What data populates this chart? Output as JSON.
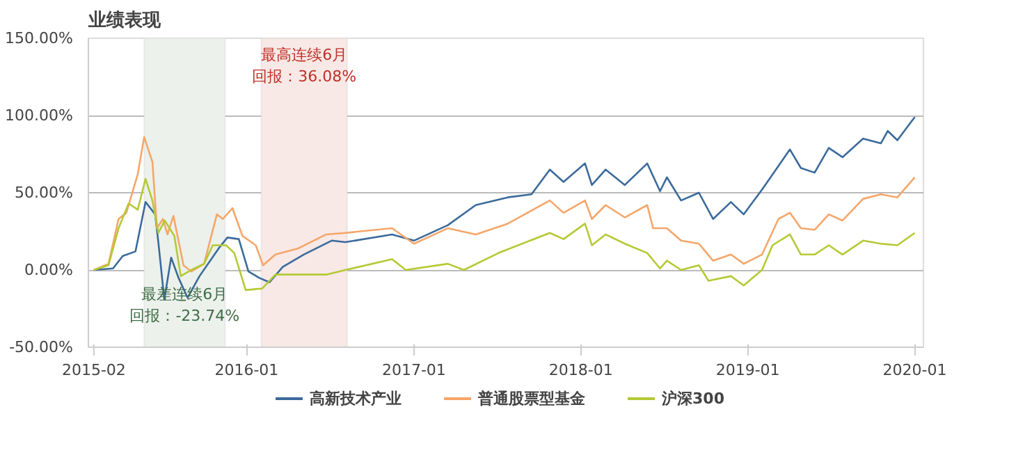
{
  "chart_data": {
    "type": "line",
    "title": "业绩表现",
    "xlim": [
      "2015-01-20",
      "2020-01-20"
    ],
    "ylim": [
      -50,
      150
    ],
    "xticks": [
      "2015-02",
      "2016-01",
      "2017-01",
      "2018-01",
      "2019-01",
      "2020-01"
    ],
    "yticks": [
      {
        "value": -50,
        "label": "-50.00%"
      },
      {
        "value": 0,
        "label": "0.00%"
      },
      {
        "value": 50,
        "label": "50.00%"
      },
      {
        "value": 100,
        "label": "100.00%"
      },
      {
        "value": 150,
        "label": "150.00%"
      }
    ],
    "grid": "y",
    "legend": "bottom",
    "bands": [
      {
        "axis": "x",
        "from": "2015-05-22",
        "to": "2015-11-15",
        "label": "最差连续6月",
        "color": "#ecf1ec"
      },
      {
        "axis": "x",
        "from": "2016-02-02",
        "to": "2016-08-08",
        "label": "最高连续6月",
        "color": "#f8e9e6"
      }
    ],
    "annotations": [
      "回报：-23.74%",
      "回报：36.08%"
    ],
    "series": [
      {
        "name": "高新技术产业",
        "color": "#3b6a9b",
        "x": [
          "2015-02-01",
          "2015-03-15",
          "2015-04-05",
          "2015-05-03",
          "2015-05-25",
          "2015-06-15",
          "2015-06-22",
          "2015-07-05",
          "2015-07-20",
          "2015-08-05",
          "2015-08-25",
          "2015-09-20",
          "2015-11-01",
          "2015-11-20",
          "2015-12-15",
          "2016-01-05",
          "2016-01-28",
          "2016-02-20",
          "2016-03-20",
          "2016-05-05",
          "2016-07-05",
          "2016-08-04",
          "2016-11-14",
          "2017-01-01",
          "2017-03-16",
          "2017-05-16",
          "2017-07-25",
          "2017-09-15",
          "2017-10-25",
          "2017-11-24",
          "2018-01-10",
          "2018-01-25",
          "2018-02-24",
          "2018-04-07",
          "2018-05-26",
          "2018-06-23",
          "2018-07-08",
          "2018-08-08",
          "2018-09-16",
          "2018-10-17",
          "2018-11-25",
          "2018-12-23",
          "2019-02-01",
          "2019-04-03",
          "2019-04-27",
          "2019-05-27",
          "2019-06-27",
          "2019-07-27",
          "2019-09-10",
          "2019-10-19",
          "2019-11-03",
          "2019-11-24",
          "2020-01-01"
        ],
        "values": [
          0,
          1,
          9,
          12,
          44,
          36,
          18,
          -19,
          8,
          -5,
          -18,
          -4,
          14,
          21,
          20,
          -1,
          -5,
          -8,
          2,
          10,
          19,
          18,
          23,
          19,
          29,
          42,
          47,
          49,
          65,
          57,
          69,
          55,
          65,
          55,
          69,
          51,
          60,
          45,
          50,
          33,
          44,
          36,
          52,
          78,
          66,
          63,
          79,
          73,
          85,
          82,
          90,
          84,
          99
        ]
      },
      {
        "name": "普通股票型基金",
        "color": "#f5a66a",
        "x": [
          "2015-02-01",
          "2015-03-05",
          "2015-03-27",
          "2015-04-13",
          "2015-05-08",
          "2015-05-22",
          "2015-06-09",
          "2015-06-19",
          "2015-07-02",
          "2015-07-12",
          "2015-07-25",
          "2015-08-16",
          "2015-09-02",
          "2015-09-30",
          "2015-10-28",
          "2015-11-10",
          "2015-12-01",
          "2015-12-23",
          "2016-01-21",
          "2016-02-06",
          "2016-03-04",
          "2016-04-23",
          "2016-06-23",
          "2016-08-04",
          "2016-11-14",
          "2017-01-01",
          "2017-03-16",
          "2017-05-16",
          "2017-07-25",
          "2017-10-25",
          "2017-11-24",
          "2018-01-10",
          "2018-01-25",
          "2018-02-24",
          "2018-04-07",
          "2018-05-26",
          "2018-06-08",
          "2018-07-08",
          "2018-08-08",
          "2018-09-16",
          "2018-10-17",
          "2018-11-25",
          "2018-12-23",
          "2019-02-01",
          "2019-03-09",
          "2019-04-03",
          "2019-04-27",
          "2019-05-27",
          "2019-06-27",
          "2019-07-27",
          "2019-09-10",
          "2019-10-19",
          "2019-11-24",
          "2020-01-01"
        ],
        "values": [
          0,
          4,
          33,
          37,
          62,
          86,
          70,
          27,
          33,
          23,
          35,
          3,
          -1,
          4,
          36,
          33,
          40,
          22,
          16,
          3,
          10,
          14,
          23,
          24,
          27,
          17,
          27,
          23,
          30,
          45,
          37,
          45,
          33,
          42,
          34,
          42,
          27,
          27,
          19,
          17,
          6,
          10,
          4,
          10,
          33,
          37,
          27,
          26,
          36,
          32,
          46,
          49,
          47,
          60
        ]
      },
      {
        "name": "沪深300",
        "color": "#b5c934",
        "x": [
          "2015-02-01",
          "2015-03-05",
          "2015-03-27",
          "2015-04-18",
          "2015-05-08",
          "2015-05-25",
          "2015-06-09",
          "2015-06-22",
          "2015-07-06",
          "2015-07-27",
          "2015-08-10",
          "2015-09-02",
          "2015-09-30",
          "2015-10-19",
          "2015-11-17",
          "2015-12-05",
          "2015-12-30",
          "2016-02-04",
          "2016-03-04",
          "2016-04-23",
          "2016-06-23",
          "2016-08-04",
          "2016-11-14",
          "2016-12-14",
          "2017-03-16",
          "2017-04-20",
          "2017-07-05",
          "2017-10-25",
          "2017-11-24",
          "2018-01-10",
          "2018-01-25",
          "2018-02-24",
          "2018-04-07",
          "2018-05-26",
          "2018-06-23",
          "2018-07-08",
          "2018-08-08",
          "2018-09-16",
          "2018-10-07",
          "2018-11-25",
          "2018-12-23",
          "2019-02-01",
          "2019-02-24",
          "2019-04-03",
          "2019-04-27",
          "2019-05-27",
          "2019-06-27",
          "2019-07-27",
          "2019-09-10",
          "2019-10-19",
          "2019-11-24",
          "2020-01-01"
        ],
        "values": [
          0,
          3,
          27,
          43,
          39,
          59,
          45,
          24,
          32,
          22,
          -4,
          0,
          4,
          16,
          16,
          11,
          -13,
          -12,
          -3,
          -3,
          -3,
          0,
          7,
          0,
          4,
          0,
          11,
          24,
          20,
          30,
          16,
          23,
          17,
          11,
          1,
          6,
          0,
          3,
          -7,
          -4,
          -10,
          0,
          16,
          23,
          10,
          10,
          16,
          10,
          19,
          17,
          16,
          24
        ]
      }
    ]
  }
}
